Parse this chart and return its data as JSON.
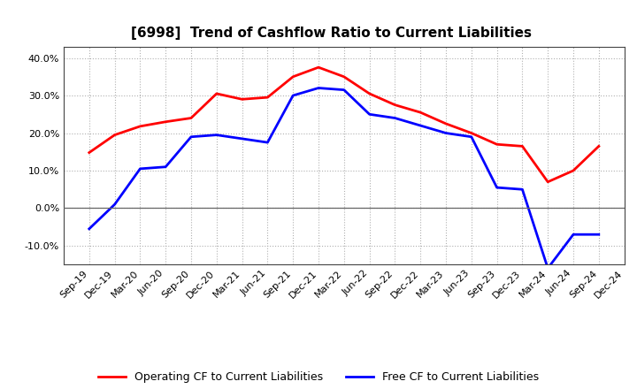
{
  "title": "[6998]  Trend of Cashflow Ratio to Current Liabilities",
  "x_labels": [
    "Sep-19",
    "Dec-19",
    "Mar-20",
    "Jun-20",
    "Sep-20",
    "Dec-20",
    "Mar-21",
    "Jun-21",
    "Sep-21",
    "Dec-21",
    "Mar-22",
    "Jun-22",
    "Sep-22",
    "Dec-22",
    "Mar-23",
    "Jun-23",
    "Sep-23",
    "Dec-23",
    "Mar-24",
    "Jun-24",
    "Sep-24",
    "Dec-24"
  ],
  "operating_cf": [
    14.8,
    19.5,
    21.8,
    23.0,
    24.0,
    30.5,
    29.0,
    29.5,
    35.0,
    37.5,
    35.0,
    30.5,
    27.5,
    25.5,
    22.5,
    20.0,
    17.0,
    16.5,
    7.0,
    10.0,
    16.5,
    null
  ],
  "free_cf": [
    -5.5,
    1.0,
    10.5,
    11.0,
    19.0,
    19.5,
    18.5,
    17.5,
    30.0,
    32.0,
    31.5,
    25.0,
    24.0,
    22.0,
    20.0,
    19.0,
    5.5,
    5.0,
    -16.0,
    -7.0,
    -7.0,
    null
  ],
  "ylim": [
    -15,
    43
  ],
  "yticks": [
    -10.0,
    0.0,
    10.0,
    20.0,
    30.0,
    40.0
  ],
  "operating_color": "#ff0000",
  "free_color": "#0000ff",
  "background_color": "#ffffff",
  "plot_background": "#ffffff",
  "grid_color": "#b0b0b0",
  "title_fontsize": 11,
  "legend_fontsize": 9,
  "tick_fontsize": 8
}
